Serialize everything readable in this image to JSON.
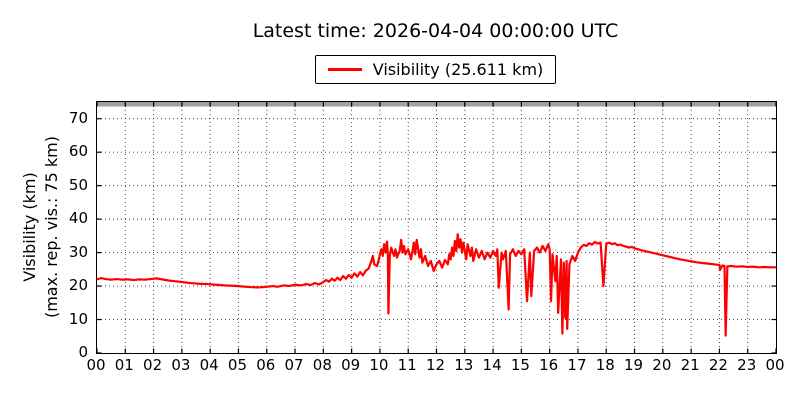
{
  "title": "Latest time: 2026-04-04 00:00:00 UTC",
  "legend": {
    "label": "Visibility (25.611 km)",
    "line_color": "#ff0000"
  },
  "axes": {
    "ylabel_line1": "Visibility (km)",
    "ylabel_line2": "(max. rep. vis.: 75 km)"
  },
  "colors": {
    "series_red": "#ff0000",
    "max_vis_band_gray": "#a0a0a0",
    "grid": "#333333",
    "spine": "#000000"
  },
  "chart_data": {
    "type": "line",
    "title": "Latest time: 2026-04-04 00:00:00 UTC",
    "xlabel": "",
    "ylabel": "Visibility (km) (max. rep. vis.: 75 km)",
    "xlim": [
      0,
      24
    ],
    "ylim": [
      0,
      75
    ],
    "grid": true,
    "legend_position": "top-center",
    "max_reportable_vis_km": 75,
    "x_tick_labels": [
      "00",
      "01",
      "02",
      "03",
      "04",
      "05",
      "06",
      "07",
      "08",
      "09",
      "10",
      "11",
      "12",
      "13",
      "14",
      "15",
      "16",
      "17",
      "18",
      "19",
      "20",
      "21",
      "22",
      "23",
      "00"
    ],
    "y_tick_values": [
      0,
      10,
      20,
      30,
      40,
      50,
      60,
      70
    ],
    "series": [
      {
        "name": "Visibility (25.611 km)",
        "color": "#ff0000",
        "latest_value_km": 25.611,
        "x_unit": "hour_utc",
        "points": [
          [
            0.0,
            22.0
          ],
          [
            0.15,
            22.4
          ],
          [
            0.3,
            22.1
          ],
          [
            0.5,
            21.9
          ],
          [
            0.7,
            22.1
          ],
          [
            0.9,
            21.9
          ],
          [
            1.1,
            22.0
          ],
          [
            1.3,
            21.8
          ],
          [
            1.5,
            22.0
          ],
          [
            1.7,
            21.9
          ],
          [
            1.9,
            22.1
          ],
          [
            2.1,
            22.3
          ],
          [
            2.3,
            22.0
          ],
          [
            2.5,
            21.7
          ],
          [
            2.7,
            21.5
          ],
          [
            2.9,
            21.3
          ],
          [
            3.1,
            21.1
          ],
          [
            3.3,
            20.9
          ],
          [
            3.6,
            20.7
          ],
          [
            3.9,
            20.6
          ],
          [
            4.2,
            20.4
          ],
          [
            4.5,
            20.2
          ],
          [
            4.8,
            20.1
          ],
          [
            5.1,
            19.9
          ],
          [
            5.4,
            19.7
          ],
          [
            5.7,
            19.6
          ],
          [
            6.0,
            19.8
          ],
          [
            6.2,
            20.0
          ],
          [
            6.4,
            19.8
          ],
          [
            6.6,
            20.2
          ],
          [
            6.8,
            20.0
          ],
          [
            7.0,
            20.4
          ],
          [
            7.2,
            20.2
          ],
          [
            7.4,
            20.6
          ],
          [
            7.55,
            20.3
          ],
          [
            7.7,
            20.9
          ],
          [
            7.85,
            20.5
          ],
          [
            8.0,
            21.2
          ],
          [
            8.1,
            21.8
          ],
          [
            8.2,
            21.3
          ],
          [
            8.3,
            22.2
          ],
          [
            8.4,
            21.6
          ],
          [
            8.5,
            22.5
          ],
          [
            8.6,
            21.8
          ],
          [
            8.7,
            23.0
          ],
          [
            8.8,
            22.2
          ],
          [
            8.9,
            23.3
          ],
          [
            9.0,
            22.5
          ],
          [
            9.1,
            23.8
          ],
          [
            9.2,
            22.8
          ],
          [
            9.3,
            24.2
          ],
          [
            9.4,
            23.2
          ],
          [
            9.5,
            24.6
          ],
          [
            9.6,
            25.2
          ],
          [
            9.7,
            27.5
          ],
          [
            9.75,
            29.0
          ],
          [
            9.8,
            26.5
          ],
          [
            9.9,
            26.0
          ],
          [
            9.95,
            27.5
          ],
          [
            10.0,
            29.5
          ],
          [
            10.05,
            31.0
          ],
          [
            10.1,
            29.0
          ],
          [
            10.15,
            32.5
          ],
          [
            10.2,
            30.0
          ],
          [
            10.25,
            33.3
          ],
          [
            10.28,
            29.5
          ],
          [
            10.3,
            11.8
          ],
          [
            10.35,
            29.0
          ],
          [
            10.4,
            31.5
          ],
          [
            10.5,
            29.0
          ],
          [
            10.55,
            31.0
          ],
          [
            10.6,
            28.5
          ],
          [
            10.7,
            30.5
          ],
          [
            10.75,
            33.8
          ],
          [
            10.8,
            30.0
          ],
          [
            10.85,
            32.0
          ],
          [
            10.9,
            29.5
          ],
          [
            11.0,
            31.0
          ],
          [
            11.1,
            28.0
          ],
          [
            11.2,
            33.0
          ],
          [
            11.25,
            29.5
          ],
          [
            11.3,
            33.8
          ],
          [
            11.4,
            28.5
          ],
          [
            11.45,
            31.0
          ],
          [
            11.5,
            27.0
          ],
          [
            11.6,
            29.0
          ],
          [
            11.7,
            26.0
          ],
          [
            11.8,
            27.5
          ],
          [
            11.9,
            24.5
          ],
          [
            12.0,
            26.5
          ],
          [
            12.1,
            27.5
          ],
          [
            12.2,
            25.5
          ],
          [
            12.3,
            27.8
          ],
          [
            12.4,
            26.5
          ],
          [
            12.45,
            29.5
          ],
          [
            12.5,
            28.0
          ],
          [
            12.55,
            31.5
          ],
          [
            12.6,
            29.0
          ],
          [
            12.65,
            33.5
          ],
          [
            12.7,
            30.5
          ],
          [
            12.75,
            35.5
          ],
          [
            12.8,
            31.5
          ],
          [
            12.85,
            34.0
          ],
          [
            12.9,
            30.0
          ],
          [
            12.95,
            33.0
          ],
          [
            13.0,
            30.5
          ],
          [
            13.05,
            28.0
          ],
          [
            13.1,
            32.5
          ],
          [
            13.2,
            29.0
          ],
          [
            13.25,
            31.5
          ],
          [
            13.3,
            27.5
          ],
          [
            13.4,
            31.0
          ],
          [
            13.5,
            28.5
          ],
          [
            13.6,
            30.5
          ],
          [
            13.7,
            28.0
          ],
          [
            13.8,
            30.0
          ],
          [
            13.9,
            28.5
          ],
          [
            14.0,
            30.5
          ],
          [
            14.1,
            29.0
          ],
          [
            14.15,
            31.0
          ],
          [
            14.2,
            19.5
          ],
          [
            14.3,
            30.0
          ],
          [
            14.35,
            28.0
          ],
          [
            14.45,
            30.5
          ],
          [
            14.55,
            13.0
          ],
          [
            14.6,
            29.5
          ],
          [
            14.7,
            31.0
          ],
          [
            14.8,
            29.0
          ],
          [
            14.9,
            30.5
          ],
          [
            15.0,
            29.5
          ],
          [
            15.1,
            31.0
          ],
          [
            15.2,
            15.5
          ],
          [
            15.3,
            30.0
          ],
          [
            15.35,
            17.0
          ],
          [
            15.45,
            30.5
          ],
          [
            15.55,
            31.5
          ],
          [
            15.65,
            30.0
          ],
          [
            15.75,
            32.0
          ],
          [
            15.85,
            30.5
          ],
          [
            15.95,
            32.5
          ],
          [
            16.0,
            31.0
          ],
          [
            16.05,
            15.5
          ],
          [
            16.1,
            29.5
          ],
          [
            16.2,
            21.5
          ],
          [
            16.25,
            29.0
          ],
          [
            16.3,
            12.0
          ],
          [
            16.4,
            28.0
          ],
          [
            16.45,
            5.8
          ],
          [
            16.5,
            27.0
          ],
          [
            16.55,
            10.5
          ],
          [
            16.6,
            27.5
          ],
          [
            16.62,
            7.2
          ],
          [
            16.7,
            26.5
          ],
          [
            16.8,
            29.0
          ],
          [
            16.9,
            27.5
          ],
          [
            17.0,
            30.0
          ],
          [
            17.1,
            31.5
          ],
          [
            17.2,
            32.3
          ],
          [
            17.3,
            32.0
          ],
          [
            17.4,
            32.8
          ],
          [
            17.5,
            32.4
          ],
          [
            17.6,
            33.2
          ],
          [
            17.7,
            32.7
          ],
          [
            17.8,
            33.0
          ],
          [
            17.9,
            20.0
          ],
          [
            18.0,
            32.6
          ],
          [
            18.1,
            33.0
          ],
          [
            18.2,
            32.5
          ],
          [
            18.3,
            32.8
          ],
          [
            18.4,
            32.2
          ],
          [
            18.5,
            32.4
          ],
          [
            18.6,
            32.0
          ],
          [
            18.7,
            31.8
          ],
          [
            18.8,
            31.5
          ],
          [
            18.9,
            31.7
          ],
          [
            19.0,
            31.3
          ],
          [
            19.2,
            30.8
          ],
          [
            19.4,
            30.4
          ],
          [
            19.6,
            30.0
          ],
          [
            19.8,
            29.6
          ],
          [
            20.0,
            29.2
          ],
          [
            20.2,
            28.8
          ],
          [
            20.4,
            28.4
          ],
          [
            20.6,
            28.0
          ],
          [
            20.8,
            27.7
          ],
          [
            21.0,
            27.4
          ],
          [
            21.2,
            27.1
          ],
          [
            21.4,
            26.9
          ],
          [
            21.6,
            26.7
          ],
          [
            21.8,
            26.5
          ],
          [
            22.0,
            26.3
          ],
          [
            22.02,
            24.8
          ],
          [
            22.1,
            26.1
          ],
          [
            22.18,
            26.0
          ],
          [
            22.22,
            5.2
          ],
          [
            22.28,
            25.9
          ],
          [
            22.4,
            26.0
          ],
          [
            22.6,
            25.8
          ],
          [
            22.8,
            25.9
          ],
          [
            23.0,
            25.7
          ],
          [
            23.2,
            25.8
          ],
          [
            23.4,
            25.6
          ],
          [
            23.6,
            25.7
          ],
          [
            23.8,
            25.6
          ],
          [
            24.0,
            25.611
          ]
        ]
      }
    ]
  }
}
